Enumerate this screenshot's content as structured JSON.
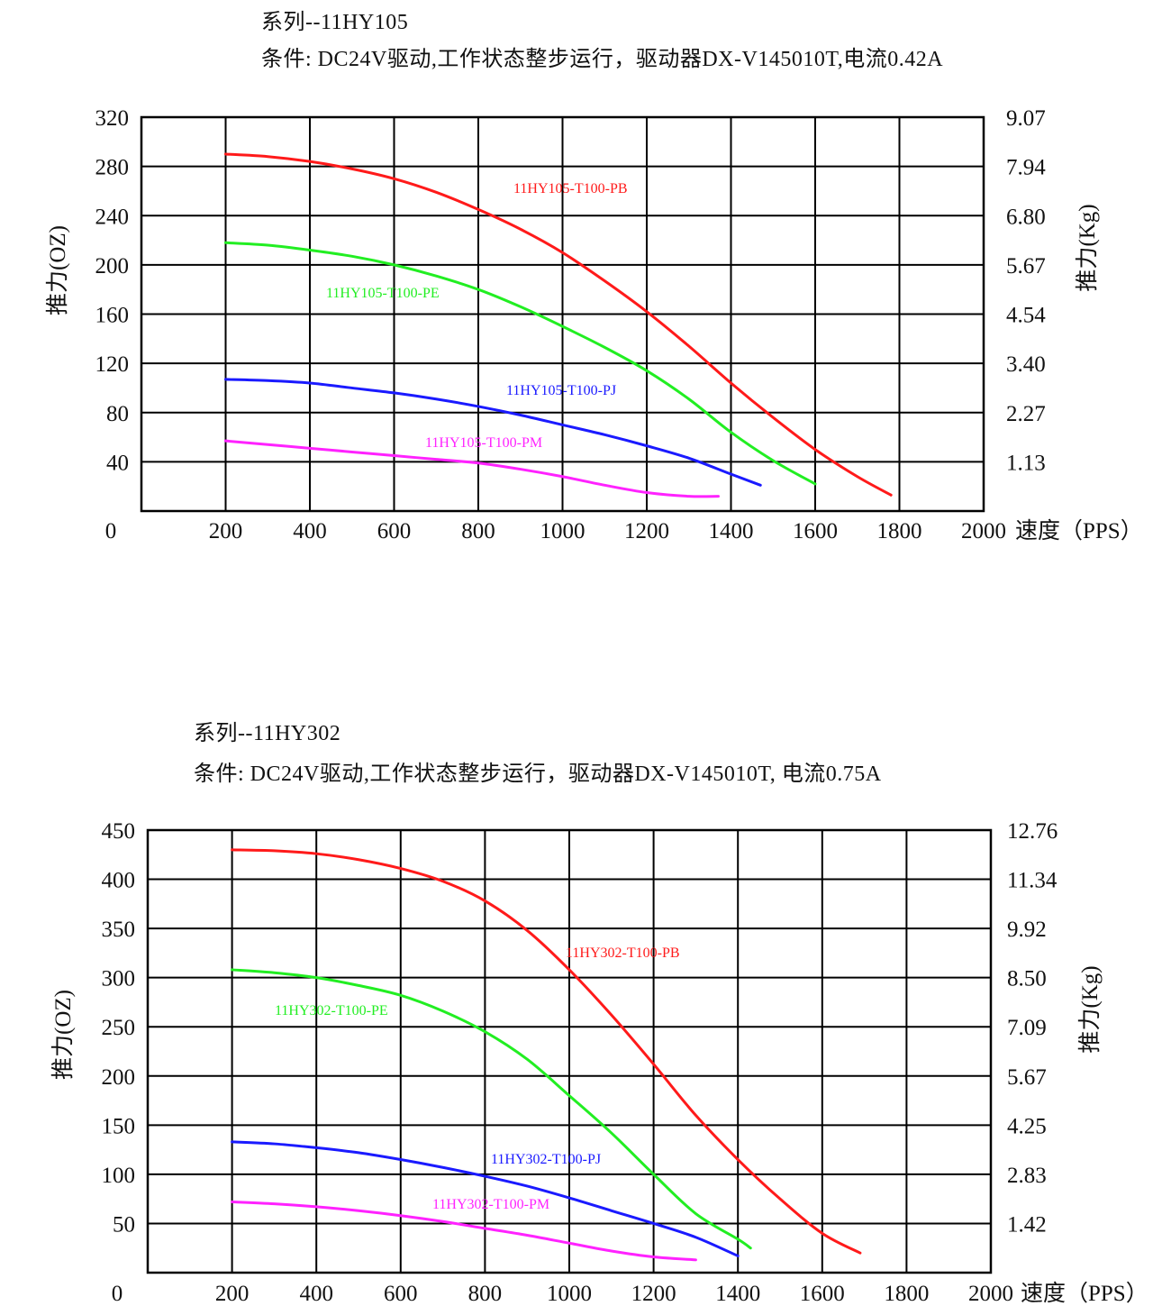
{
  "chart_data": [
    {
      "type": "line",
      "title": "系列--11HY105",
      "subtitle": "条件: DC24V驱动,工作状态整步运行，驱动器DX-V145010T,电流0.42A",
      "xlabel": "速度（PPS）",
      "ylabel": "推力(OZ)",
      "ylabel_right": "推力(Kg)",
      "xlim": [
        0,
        2000
      ],
      "ylim": [
        0,
        320
      ],
      "x_ticks": [
        "200",
        "400",
        "600",
        "800",
        "1000",
        "1200",
        "1400",
        "1600",
        "1800",
        "2000"
      ],
      "y_ticks": [
        "40",
        "80",
        "120",
        "160",
        "200",
        "240",
        "280",
        "320"
      ],
      "y_zero_label": "0",
      "y_right_ticks": [
        "1.13",
        "2.27",
        "3.40",
        "4.54",
        "5.67",
        "6.80",
        "7.94",
        "9.07"
      ],
      "grid": true,
      "series": [
        {
          "name": "11HY105-T100-PB",
          "color": "#ff1a1a",
          "x": [
            200,
            300,
            400,
            500,
            600,
            700,
            800,
            900,
            1000,
            1100,
            1200,
            1300,
            1400,
            1500,
            1600,
            1700,
            1780
          ],
          "y": [
            290,
            288,
            284,
            278,
            270,
            259,
            245,
            229,
            210,
            187,
            162,
            134,
            104,
            76,
            50,
            28,
            13
          ]
        },
        {
          "name": "11HY105-T100-PE",
          "color": "#22ee22",
          "x": [
            200,
            300,
            400,
            500,
            600,
            700,
            800,
            900,
            1000,
            1100,
            1200,
            1300,
            1400,
            1500,
            1600
          ],
          "y": [
            218,
            216,
            212,
            207,
            200,
            191,
            180,
            166,
            150,
            133,
            114,
            91,
            64,
            41,
            22
          ]
        },
        {
          "name": "11HY105-T100-PJ",
          "color": "#1a1aff",
          "x": [
            200,
            300,
            400,
            500,
            600,
            700,
            800,
            900,
            1000,
            1100,
            1200,
            1300,
            1400,
            1470
          ],
          "y": [
            107,
            106,
            104,
            100,
            96,
            91,
            85,
            78,
            70,
            62,
            53,
            43,
            30,
            21
          ]
        },
        {
          "name": "11HY105-T100-PM",
          "color": "#ff22ff",
          "x": [
            200,
            300,
            400,
            500,
            600,
            700,
            800,
            900,
            1000,
            1100,
            1200,
            1300,
            1370
          ],
          "y": [
            57,
            54,
            51,
            48,
            45,
            42,
            39,
            34,
            28,
            21,
            15,
            12,
            12
          ]
        }
      ]
    },
    {
      "type": "line",
      "title": "系列--11HY302",
      "subtitle": "条件: DC24V驱动,工作状态整步运行，驱动器DX-V145010T, 电流0.75A",
      "xlabel": "速度（PPS）",
      "ylabel": "推力(OZ)",
      "ylabel_right": "推力(Kg)",
      "xlim": [
        0,
        2000
      ],
      "ylim": [
        0,
        450
      ],
      "x_ticks": [
        "200",
        "400",
        "600",
        "800",
        "1000",
        "1200",
        "1400",
        "1600",
        "1800",
        "2000"
      ],
      "y_ticks": [
        "50",
        "100",
        "150",
        "200",
        "250",
        "300",
        "350",
        "400",
        "450"
      ],
      "y_zero_label": "0",
      "y_right_ticks": [
        "1.42",
        "2.83",
        "4.25",
        "5.67",
        "7.09",
        "8.50",
        "9.92",
        "11.34",
        "12.76"
      ],
      "grid": true,
      "series": [
        {
          "name": "11HY302-T100-PB",
          "color": "#ff1a1a",
          "x": [
            200,
            300,
            400,
            500,
            600,
            700,
            800,
            900,
            1000,
            1100,
            1200,
            1300,
            1400,
            1500,
            1600,
            1690
          ],
          "y": [
            430,
            429,
            426,
            420,
            411,
            398,
            378,
            348,
            308,
            262,
            212,
            160,
            115,
            75,
            40,
            20
          ]
        },
        {
          "name": "11HY302-T100-PE",
          "color": "#22ee22",
          "x": [
            200,
            300,
            400,
            500,
            600,
            700,
            800,
            900,
            1000,
            1100,
            1200,
            1300,
            1400,
            1430
          ],
          "y": [
            308,
            305,
            300,
            292,
            282,
            266,
            245,
            217,
            180,
            142,
            100,
            60,
            34,
            25
          ]
        },
        {
          "name": "11HY302-T100-PJ",
          "color": "#1a1aff",
          "x": [
            200,
            300,
            400,
            500,
            600,
            700,
            800,
            900,
            1000,
            1100,
            1200,
            1300,
            1400
          ],
          "y": [
            133,
            131,
            127,
            122,
            115,
            107,
            98,
            88,
            76,
            63,
            50,
            36,
            17
          ]
        },
        {
          "name": "11HY302-T100-PM",
          "color": "#ff22ff",
          "x": [
            200,
            300,
            400,
            500,
            600,
            700,
            800,
            900,
            1000,
            1100,
            1200,
            1300
          ],
          "y": [
            72,
            70,
            67,
            63,
            58,
            52,
            45,
            38,
            30,
            22,
            16,
            13
          ]
        }
      ]
    }
  ]
}
